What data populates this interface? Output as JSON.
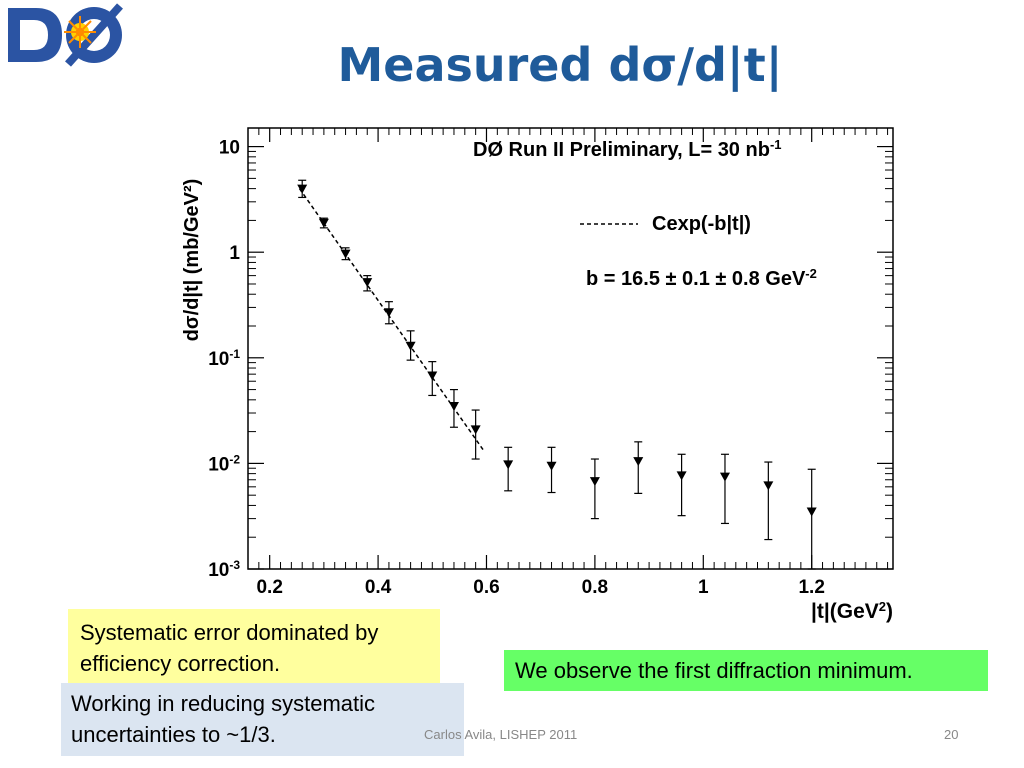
{
  "slide": {
    "title": "Measured dσ/d|t|",
    "footer_author": "Carlos Avila, LISHEP 2011",
    "page_number": "20",
    "notes": {
      "systematic_line1": "Systematic error dominated by",
      "systematic_line2": "efficiency correction.",
      "diffraction": "We observe the first diffraction minimum.",
      "working_line1": "Working in reducing systematic",
      "working_line2": "uncertainties to ~1/3."
    }
  },
  "chart_data": {
    "type": "scatter",
    "title": "DØ Run II Preliminary, L= 30 nb",
    "title_sup": "-1",
    "xlabel": "|t|(GeV",
    "xlabel_sup": "2",
    "xlabel_tail": ")",
    "ylabel": "dσ/d|t|  (mb/GeV²)",
    "xlim": [
      0.16,
      1.35
    ],
    "ylim": [
      0.001,
      15
    ],
    "log_y": true,
    "grid": false,
    "x_ticks": [
      "0.2",
      "0.4",
      "0.6",
      "0.8",
      "1",
      "1.2"
    ],
    "y_ticks": [
      {
        "value": 10,
        "base": "10",
        "exp": ""
      },
      {
        "value": 1,
        "base": "1",
        "exp": ""
      },
      {
        "value": 0.1,
        "base": "10",
        "exp": "-1"
      },
      {
        "value": 0.01,
        "base": "10",
        "exp": "-2"
      },
      {
        "value": 0.001,
        "base": "10",
        "exp": "-3"
      }
    ],
    "legend": {
      "placement": "top-right",
      "fit_label": "Cexp(-b|t|)",
      "b_label": "b = 16.5 ± 0.1 ± 0.8 GeV",
      "b_sup": "-2"
    },
    "fit": {
      "x_start": 0.255,
      "x_end": 0.595,
      "y_start": 4.0,
      "y_end": 0.0132
    },
    "points": [
      {
        "x": 0.26,
        "y": 4.0,
        "lo": 3.3,
        "hi": 4.8
      },
      {
        "x": 0.3,
        "y": 1.9,
        "lo": 1.7,
        "hi": 2.1
      },
      {
        "x": 0.34,
        "y": 0.97,
        "lo": 0.85,
        "hi": 1.1
      },
      {
        "x": 0.38,
        "y": 0.52,
        "lo": 0.43,
        "hi": 0.6
      },
      {
        "x": 0.42,
        "y": 0.27,
        "lo": 0.21,
        "hi": 0.34
      },
      {
        "x": 0.46,
        "y": 0.13,
        "lo": 0.095,
        "hi": 0.18
      },
      {
        "x": 0.5,
        "y": 0.068,
        "lo": 0.044,
        "hi": 0.092
      },
      {
        "x": 0.54,
        "y": 0.035,
        "lo": 0.022,
        "hi": 0.05
      },
      {
        "x": 0.58,
        "y": 0.021,
        "lo": 0.011,
        "hi": 0.032
      },
      {
        "x": 0.64,
        "y": 0.0098,
        "lo": 0.0055,
        "hi": 0.0142
      },
      {
        "x": 0.72,
        "y": 0.0095,
        "lo": 0.0053,
        "hi": 0.0142
      },
      {
        "x": 0.8,
        "y": 0.0068,
        "lo": 0.003,
        "hi": 0.011
      },
      {
        "x": 0.88,
        "y": 0.0105,
        "lo": 0.0052,
        "hi": 0.016
      },
      {
        "x": 0.96,
        "y": 0.0077,
        "lo": 0.0032,
        "hi": 0.0122
      },
      {
        "x": 1.04,
        "y": 0.0075,
        "lo": 0.0027,
        "hi": 0.0122
      },
      {
        "x": 1.12,
        "y": 0.0062,
        "lo": 0.0019,
        "hi": 0.0103
      },
      {
        "x": 1.2,
        "y": 0.0035,
        "lo": 0.001,
        "hi": 0.0088
      }
    ],
    "colors": {
      "frame": "#000000",
      "marker": "#000000",
      "fit": "#000000"
    }
  }
}
